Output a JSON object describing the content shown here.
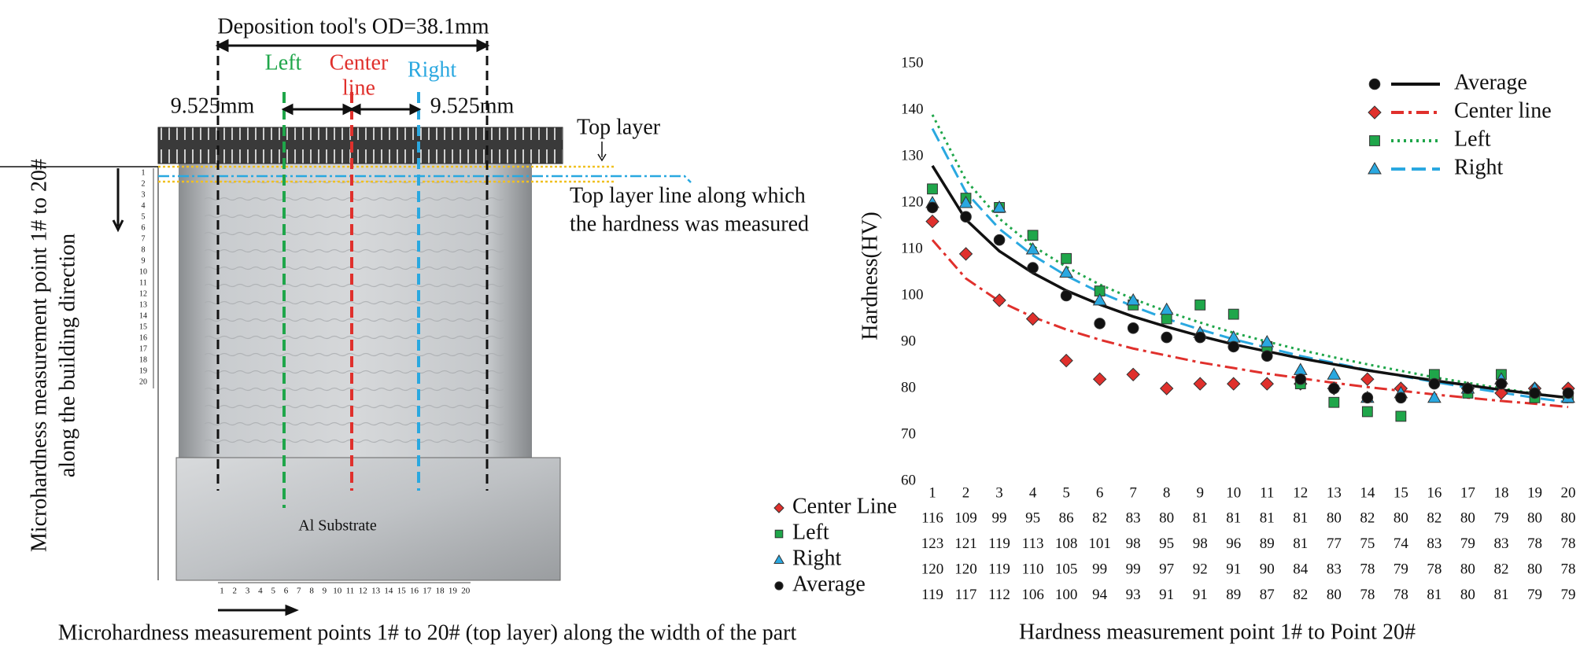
{
  "diagram": {
    "tool_label": "Deposition tool's  OD=38.1mm",
    "left_label": "Left",
    "center_label": [
      "Center",
      "line"
    ],
    "right_label": "Right",
    "offset_left": "9.525mm",
    "offset_right": "9.525mm",
    "top_layer": "Top layer",
    "top_layer_line": [
      "Top layer line along which",
      "the hardness was measured"
    ],
    "vertical_label": [
      "Microhardness measurement point 1# to 20#",
      "along the building direction"
    ],
    "substrate": "Al Substrate",
    "caption": "Microhardness measurement points 1# to 20# (top layer) along the width of the part",
    "ruler": [
      1,
      2,
      3,
      4,
      5,
      6,
      7,
      8,
      9,
      10,
      11,
      12,
      13,
      14,
      15,
      16,
      17,
      18,
      19,
      20
    ]
  },
  "chart_data": {
    "type": "scatter",
    "ylabel": "Hardness(HV)",
    "xlabel": "Hardness measurement point 1# to Point 20#",
    "x": [
      1,
      2,
      3,
      4,
      5,
      6,
      7,
      8,
      9,
      10,
      11,
      12,
      13,
      14,
      15,
      16,
      17,
      18,
      19,
      20
    ],
    "xlim": [
      1,
      20
    ],
    "ylim": [
      60,
      150
    ],
    "yticks": [
      60,
      70,
      80,
      90,
      100,
      110,
      120,
      130,
      140,
      150
    ],
    "series": [
      {
        "name": "Center Line",
        "trend_name": "Center line",
        "color": "#e0302c",
        "marker": "diamond",
        "line_style": "dashdot",
        "values": [
          116,
          109,
          99,
          95,
          86,
          82,
          83,
          80,
          81,
          81,
          81,
          81,
          80,
          82,
          80,
          82,
          80,
          79,
          80,
          80
        ],
        "trend": [
          112,
          103.7,
          98.8,
          95.4,
          92.7,
          90.5,
          88.6,
          87.1,
          85.6,
          84.4,
          83.2,
          82.2,
          81.2,
          80.3,
          79.5,
          78.7,
          78.0,
          77.3,
          76.7,
          76.0
        ]
      },
      {
        "name": "Left",
        "trend_name": "Left",
        "color": "#1fa64a",
        "marker": "square",
        "line_style": "dotted",
        "values": [
          123,
          121,
          119,
          113,
          108,
          101,
          98,
          95,
          98,
          96,
          89,
          81,
          77,
          75,
          74,
          83,
          79,
          83,
          78,
          78
        ],
        "trend": [
          139,
          124.9,
          116.6,
          110.7,
          106.2,
          102.4,
          99.3,
          96.6,
          94.2,
          92.0,
          90.1,
          88.3,
          86.7,
          85.2,
          83.8,
          82.4,
          81.2,
          80.0,
          78.9,
          77.9
        ]
      },
      {
        "name": "Right",
        "trend_name": "Right",
        "color": "#2aa8e0",
        "marker": "triangle",
        "line_style": "dashed",
        "values": [
          120,
          120,
          119,
          110,
          105,
          99,
          99,
          97,
          92,
          91,
          90,
          84,
          83,
          78,
          79,
          78,
          80,
          82,
          80,
          78
        ],
        "trend": [
          136,
          122.3,
          114.4,
          108.7,
          104.3,
          100.7,
          97.7,
          95.0,
          92.7,
          90.6,
          88.8,
          87.0,
          85.5,
          84.0,
          82.7,
          81.4,
          80.2,
          79.1,
          78.0,
          77.0
        ]
      },
      {
        "name": "Average",
        "trend_name": "Average",
        "color": "#111111",
        "marker": "circle",
        "line_style": "solid",
        "values": [
          119,
          117,
          112,
          106,
          100,
          94,
          93,
          91,
          91,
          89,
          87,
          82,
          80,
          78,
          78,
          81,
          80,
          81,
          79,
          79
        ],
        "trend": [
          128,
          116.4,
          109.6,
          104.9,
          101.1,
          98.1,
          95.5,
          93.3,
          91.3,
          89.5,
          88.0,
          86.5,
          85.2,
          83.9,
          82.8,
          81.7,
          80.7,
          79.7,
          78.8,
          78.0
        ]
      }
    ]
  }
}
